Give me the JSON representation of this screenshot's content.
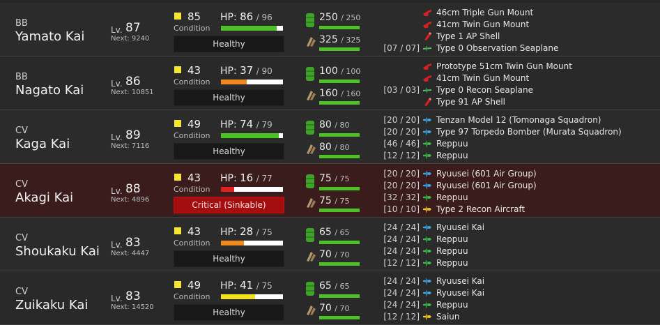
{
  "colors": {
    "hp_green": "#4cc224",
    "hp_orange": "#f08a1c",
    "hp_red": "#e22020",
    "hp_yellow": "#f2e21a",
    "resource_green": "#4cc224",
    "critical_bg": "#a50e0e"
  },
  "ships": [
    {
      "type": "BB",
      "name": "Yamato Kai",
      "lv_label": "Lv.",
      "level": "87",
      "next": "Next: 9240",
      "condition": "85",
      "condition_label": "Condition",
      "condition_color": "yellow",
      "hp_label": "HP:",
      "hp_cur": "86",
      "hp_max": "/ 96",
      "hp_pct": 0.896,
      "hp_color": "green",
      "status": "Healthy",
      "critical": false,
      "fuel": "250",
      "fuel_max": "/ 250",
      "ammo": "325",
      "ammo_max": "/ 325",
      "equipment": [
        {
          "slot": "",
          "icon": "main-gun-icon",
          "name": "46cm Triple Gun Mount"
        },
        {
          "slot": "",
          "icon": "main-gun-icon",
          "name": "41cm Twin Gun Mount"
        },
        {
          "slot": "",
          "icon": "ap-shell-icon",
          "name": "Type 1 AP Shell"
        },
        {
          "slot": "[07 / 07]",
          "icon": "seaplane-icon",
          "name": "Type 0 Observation Seaplane"
        }
      ]
    },
    {
      "type": "BB",
      "name": "Nagato Kai",
      "lv_label": "Lv.",
      "level": "86",
      "next": "Next: 10851",
      "condition": "43",
      "condition_label": "Condition",
      "condition_color": "white",
      "hp_label": "HP:",
      "hp_cur": "37",
      "hp_max": "/ 90",
      "hp_pct": 0.411,
      "hp_color": "orange",
      "status": "Healthy",
      "critical": false,
      "fuel": "100",
      "fuel_max": "/ 100",
      "ammo": "160",
      "ammo_max": "/ 160",
      "equipment": [
        {
          "slot": "",
          "icon": "main-gun-icon",
          "name": "Prototype 51cm Twin Gun Mount"
        },
        {
          "slot": "",
          "icon": "main-gun-icon",
          "name": "41cm Twin Gun Mount"
        },
        {
          "slot": "[03 / 03]",
          "icon": "seaplane-icon",
          "name": "Type 0 Recon Seaplane"
        },
        {
          "slot": "",
          "icon": "ap-shell-icon",
          "name": "Type 91 AP Shell"
        }
      ]
    },
    {
      "type": "CV",
      "name": "Kaga Kai",
      "lv_label": "Lv.",
      "level": "89",
      "next": "Next: 7116",
      "condition": "49",
      "condition_label": "Condition",
      "condition_color": "white",
      "hp_label": "HP:",
      "hp_cur": "74",
      "hp_max": "/ 79",
      "hp_pct": 0.937,
      "hp_color": "green",
      "status": "Healthy",
      "critical": false,
      "fuel": "80",
      "fuel_max": "/ 80",
      "ammo": "80",
      "ammo_max": "/ 80",
      "equipment": [
        {
          "slot": "[20 / 20]",
          "icon": "torpedo-bomber-icon",
          "name": "Tenzan Model 12 (Tomonaga Squadron)"
        },
        {
          "slot": "[20 / 20]",
          "icon": "torpedo-bomber-icon",
          "name": "Type 97 Torpedo Bomber (Murata Squadron)"
        },
        {
          "slot": "[46 / 46]",
          "icon": "fighter-icon",
          "name": "Reppuu"
        },
        {
          "slot": "[12 / 12]",
          "icon": "fighter-icon",
          "name": "Reppuu"
        }
      ]
    },
    {
      "type": "CV",
      "name": "Akagi Kai",
      "lv_label": "Lv.",
      "level": "88",
      "next": "Next: 4896",
      "condition": "43",
      "condition_label": "Condition",
      "condition_color": "white",
      "hp_label": "HP:",
      "hp_cur": "16",
      "hp_max": "/ 77",
      "hp_pct": 0.208,
      "hp_color": "red",
      "status": "Critical (Sinkable)",
      "critical": true,
      "fuel": "75",
      "fuel_max": "/ 75",
      "ammo": "75",
      "ammo_max": "/ 75",
      "equipment": [
        {
          "slot": "[20 / 20]",
          "icon": "torpedo-bomber-icon",
          "name": "Ryuusei (601 Air Group)"
        },
        {
          "slot": "[20 / 20]",
          "icon": "torpedo-bomber-icon",
          "name": "Ryuusei (601 Air Group)"
        },
        {
          "slot": "[32 / 32]",
          "icon": "fighter-icon",
          "name": "Reppuu"
        },
        {
          "slot": "[10 / 10]",
          "icon": "recon-aircraft-icon",
          "name": "Type 2 Recon Aircraft"
        }
      ]
    },
    {
      "type": "CV",
      "name": "Shoukaku Kai",
      "lv_label": "Lv.",
      "level": "83",
      "next": "Next: 4447",
      "condition": "43",
      "condition_label": "Condition",
      "condition_color": "white",
      "hp_label": "HP:",
      "hp_cur": "28",
      "hp_max": "/ 75",
      "hp_pct": 0.373,
      "hp_color": "orange",
      "status": "Healthy",
      "critical": false,
      "fuel": "65",
      "fuel_max": "/ 65",
      "ammo": "70",
      "ammo_max": "/ 70",
      "equipment": [
        {
          "slot": "[24 / 24]",
          "icon": "torpedo-bomber-icon",
          "name": "Ryuusei Kai"
        },
        {
          "slot": "[24 / 24]",
          "icon": "fighter-icon",
          "name": "Reppuu"
        },
        {
          "slot": "[24 / 24]",
          "icon": "fighter-icon",
          "name": "Reppuu"
        },
        {
          "slot": "[12 / 12]",
          "icon": "fighter-icon",
          "name": "Reppuu"
        }
      ]
    },
    {
      "type": "CV",
      "name": "Zuikaku Kai",
      "lv_label": "Lv.",
      "level": "83",
      "next": "Next: 14520",
      "condition": "49",
      "condition_label": "Condition",
      "condition_color": "white",
      "hp_label": "HP:",
      "hp_cur": "41",
      "hp_max": "/ 75",
      "hp_pct": 0.547,
      "hp_color": "yellow",
      "status": "Healthy",
      "critical": false,
      "fuel": "65",
      "fuel_max": "/ 65",
      "ammo": "70",
      "ammo_max": "/ 70",
      "equipment": [
        {
          "slot": "[24 / 24]",
          "icon": "torpedo-bomber-icon",
          "name": "Ryuusei Kai"
        },
        {
          "slot": "[24 / 24]",
          "icon": "torpedo-bomber-icon",
          "name": "Ryuusei Kai"
        },
        {
          "slot": "[24 / 24]",
          "icon": "fighter-icon",
          "name": "Reppuu"
        },
        {
          "slot": "[12 / 12]",
          "icon": "recon-aircraft-icon",
          "name": "Saiun"
        }
      ]
    }
  ]
}
